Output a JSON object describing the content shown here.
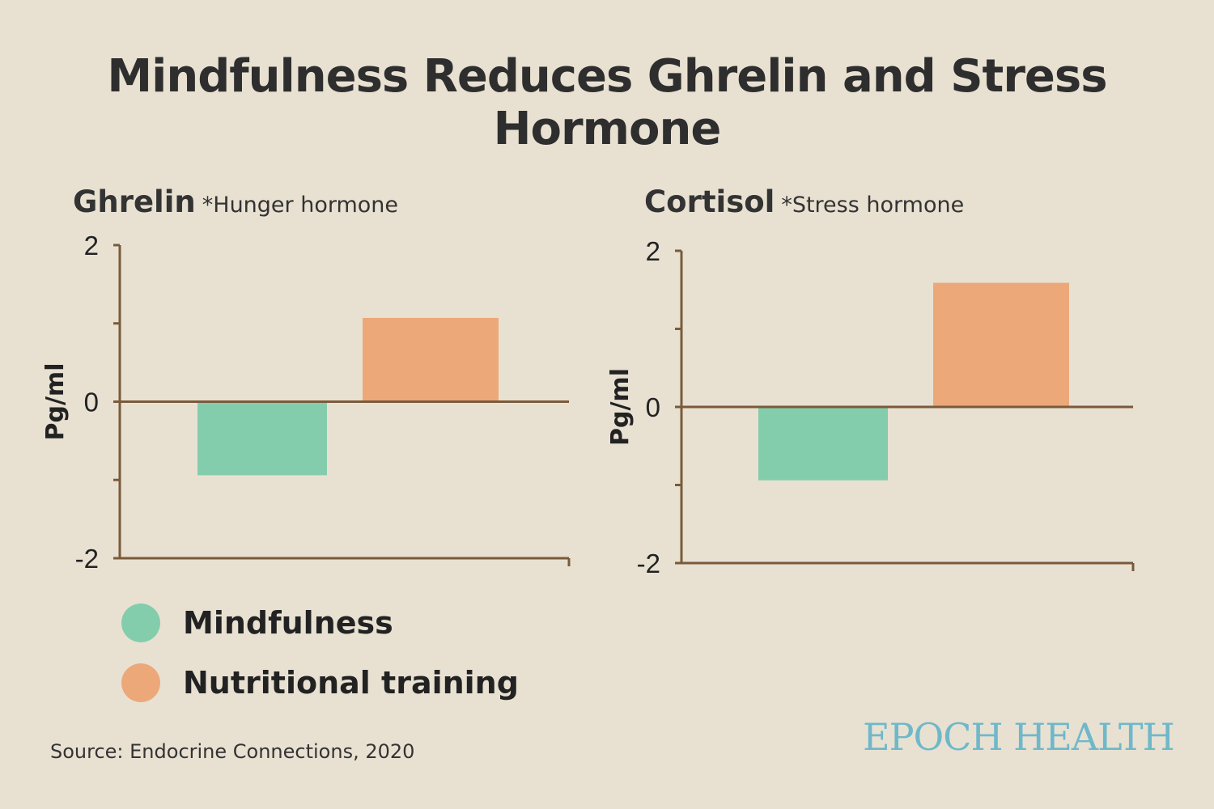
{
  "title": "Mindfulness Reduces Ghrelin and Stress Hormone",
  "colors": {
    "mindfulness": "#83cdac",
    "nutritional": "#eda87a",
    "axis": "#7a5a3a"
  },
  "legend": [
    "Mindfulness",
    "Nutritional training"
  ],
  "source": "Source: Endocrine Connections, 2020",
  "logo": "EPOCH HEALTH",
  "chart_data": [
    {
      "type": "bar",
      "title": "Ghrelin",
      "subtitle": "*Hunger hormone",
      "ylabel": "Pg/ml",
      "ylim": [
        -2,
        2
      ],
      "yticks": [
        "2",
        "0",
        "-2"
      ],
      "series": [
        {
          "name": "Mindfulness",
          "values": [
            -0.94
          ]
        },
        {
          "name": "Nutritional training",
          "values": [
            1.07
          ]
        }
      ]
    },
    {
      "type": "bar",
      "title": "Cortisol",
      "subtitle": "*Stress hormone",
      "ylabel": "Pg/ml",
      "ylim": [
        -2,
        2
      ],
      "yticks": [
        "2",
        "0",
        "-2"
      ],
      "series": [
        {
          "name": "Mindfulness",
          "values": [
            -0.94
          ]
        },
        {
          "name": "Nutritional training",
          "values": [
            1.59
          ]
        }
      ]
    }
  ]
}
